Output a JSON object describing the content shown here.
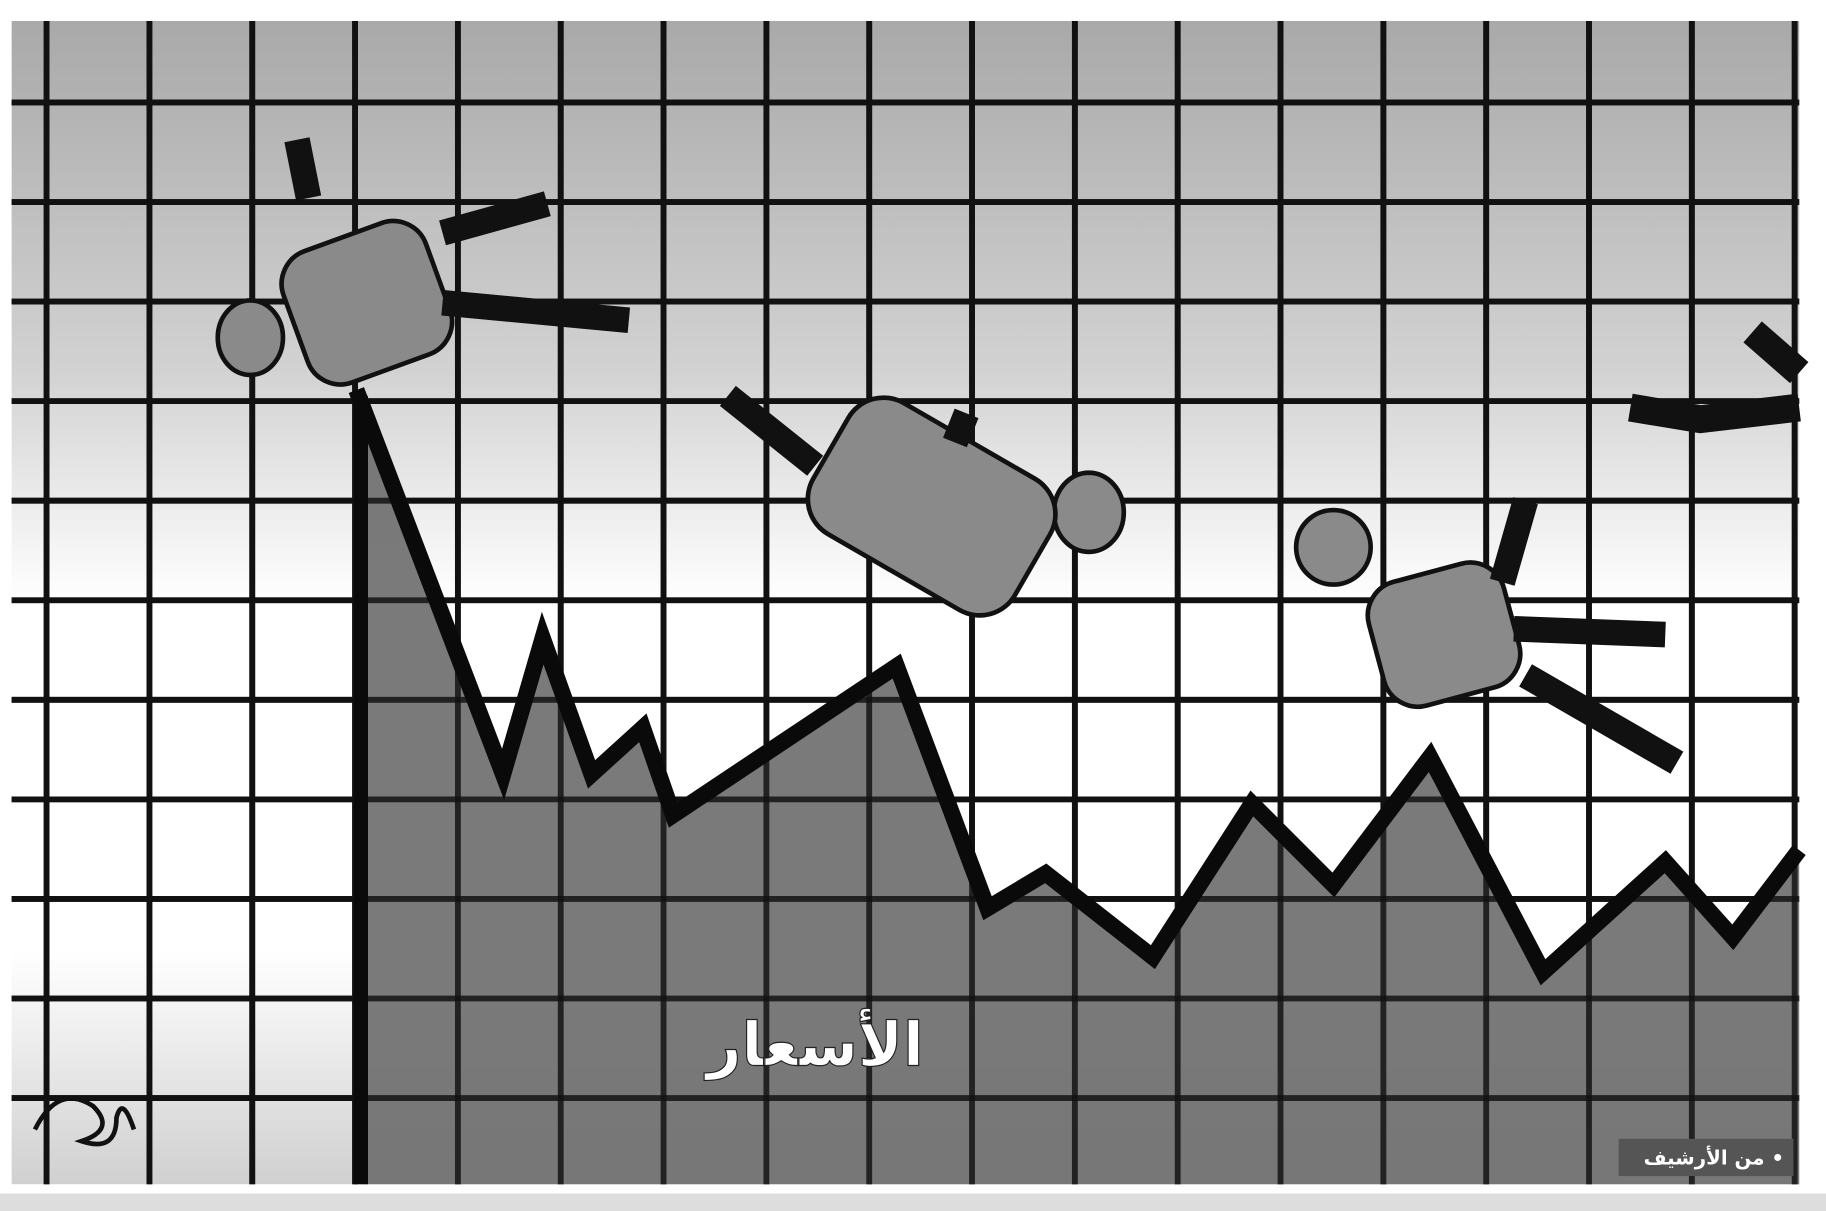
{
  "caption": {
    "label": "الأسعار"
  },
  "credit": {
    "label": "• من الأرشيف"
  }
}
